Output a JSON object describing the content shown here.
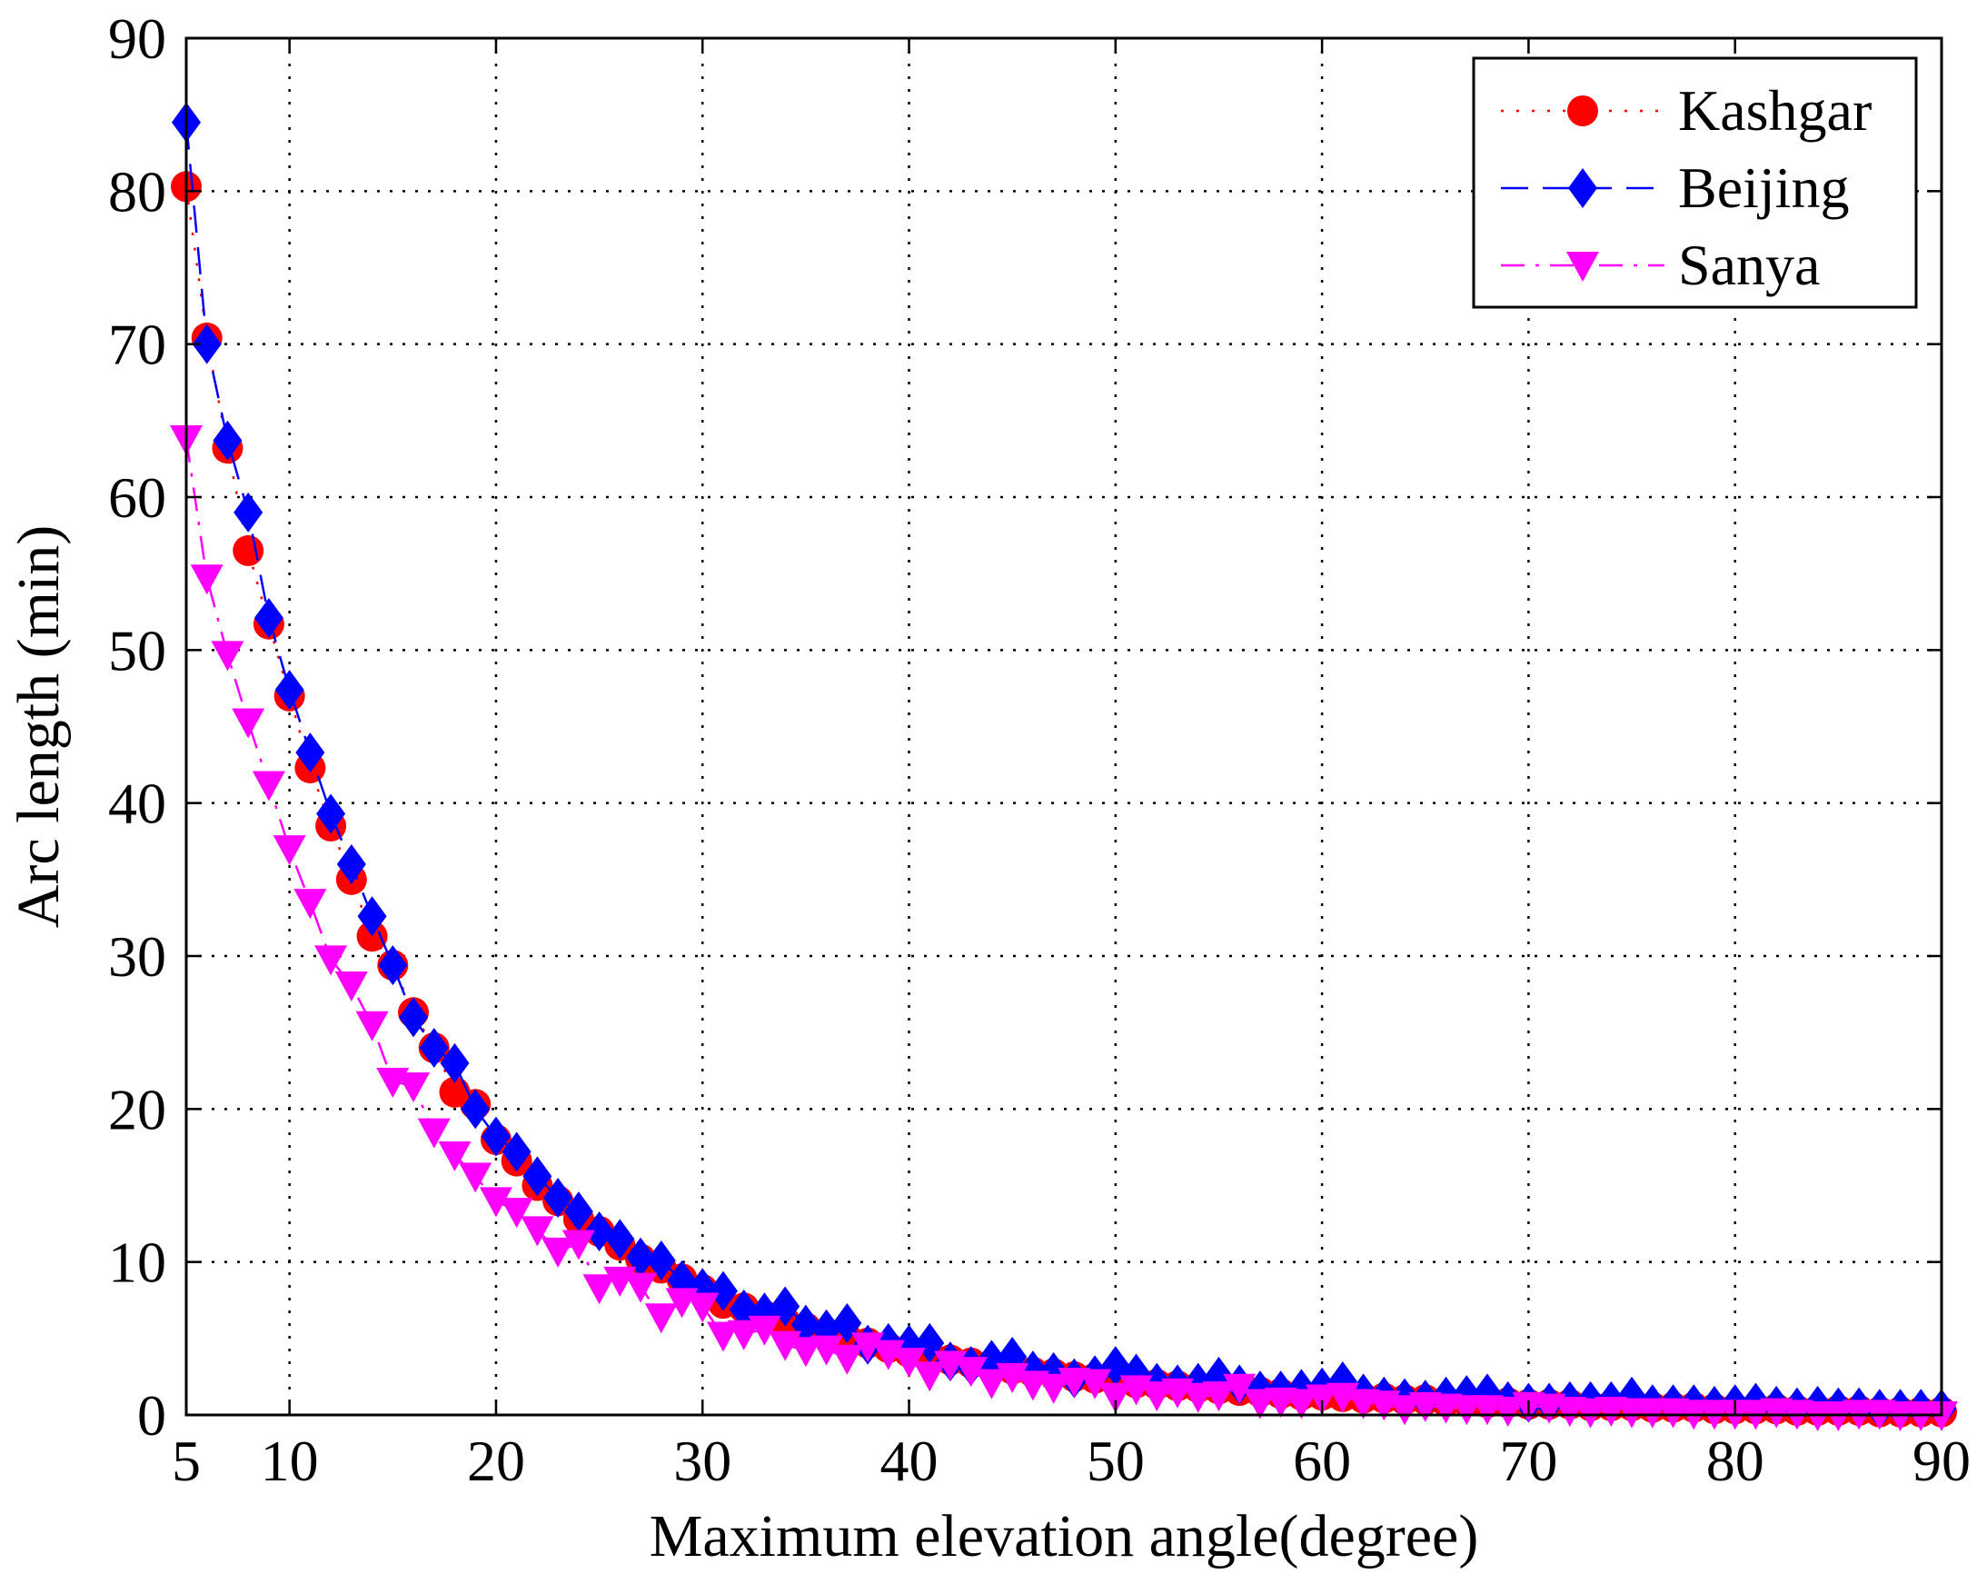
{
  "chart_data": {
    "type": "line",
    "xlabel": "Maximum elevation angle(degree)",
    "ylabel": "Arc length (min)",
    "xlim": [
      5,
      90
    ],
    "ylim": [
      0,
      90
    ],
    "x_ticks": [
      "5",
      "10",
      "20",
      "30",
      "40",
      "50",
      "60",
      "70",
      "80",
      "90"
    ],
    "x_tick_values": [
      5,
      10,
      20,
      30,
      40,
      50,
      60,
      70,
      80,
      90
    ],
    "y_ticks": [
      "0",
      "10",
      "20",
      "30",
      "40",
      "50",
      "60",
      "70",
      "80",
      "90"
    ],
    "y_tick_values": [
      0,
      10,
      20,
      30,
      40,
      50,
      60,
      70,
      80,
      90
    ],
    "grid": true,
    "legend_position": "top-right",
    "series": [
      {
        "name": "Kashgar",
        "color": "#ff0000",
        "marker": "circle",
        "line_style": "dotted",
        "x": [
          5,
          6,
          7,
          8,
          9,
          10,
          11,
          12,
          13,
          14,
          15,
          16,
          17,
          18,
          19,
          20,
          21,
          22,
          23,
          24,
          25,
          26,
          27,
          28,
          29,
          30,
          31,
          32,
          33,
          34,
          35,
          36,
          37,
          38,
          39,
          40,
          41,
          42,
          43,
          44,
          45,
          46,
          47,
          48,
          49,
          50,
          51,
          52,
          53,
          54,
          55,
          56,
          57,
          58,
          59,
          60,
          61,
          62,
          63,
          64,
          65,
          66,
          67,
          68,
          69,
          70,
          71,
          72,
          73,
          74,
          75,
          76,
          77,
          78,
          79,
          80,
          81,
          82,
          83,
          84,
          85,
          86,
          87,
          88,
          89,
          90
        ],
        "values": [
          80.3,
          70.4,
          63.2,
          56.5,
          51.7,
          47.0,
          42.3,
          38.5,
          35.0,
          31.3,
          29.4,
          26.3,
          24.0,
          21.1,
          20.3,
          18.0,
          16.6,
          15.0,
          14.0,
          12.8,
          12.0,
          11.1,
          10.2,
          9.6,
          8.9,
          8.2,
          7.3,
          7.0,
          6.5,
          6.1,
          5.7,
          5.3,
          5.0,
          4.7,
          4.4,
          4.1,
          3.8,
          3.6,
          3.4,
          3.2,
          3.0,
          2.8,
          2.7,
          2.5,
          2.4,
          2.2,
          2.1,
          2.0,
          1.9,
          1.8,
          1.7,
          1.6,
          1.5,
          1.4,
          1.3,
          1.3,
          1.2,
          1.1,
          1.1,
          1.0,
          1.0,
          0.9,
          0.9,
          0.8,
          0.8,
          0.7,
          0.7,
          0.7,
          0.6,
          0.6,
          0.6,
          0.5,
          0.5,
          0.5,
          0.4,
          0.4,
          0.4,
          0.4,
          0.3,
          0.3,
          0.3,
          0.3,
          0.2,
          0.2,
          0.2,
          0.2
        ]
      },
      {
        "name": "Beijing",
        "color": "#0000ff",
        "marker": "diamond",
        "line_style": "dashed",
        "x": [
          5,
          6,
          7,
          8,
          9,
          10,
          11,
          12,
          13,
          14,
          15,
          16,
          17,
          18,
          19,
          20,
          21,
          22,
          23,
          24,
          25,
          26,
          27,
          28,
          29,
          30,
          31,
          32,
          33,
          34,
          35,
          36,
          37,
          38,
          39,
          40,
          41,
          42,
          43,
          44,
          45,
          46,
          47,
          48,
          49,
          50,
          51,
          52,
          53,
          54,
          55,
          56,
          57,
          58,
          59,
          60,
          61,
          62,
          63,
          64,
          65,
          66,
          67,
          68,
          69,
          70,
          71,
          72,
          73,
          74,
          75,
          76,
          77,
          78,
          79,
          80,
          81,
          82,
          83,
          84,
          85,
          86,
          87,
          88,
          89,
          90
        ],
        "values": [
          84.5,
          70.0,
          63.7,
          59.0,
          52.1,
          47.4,
          43.3,
          39.3,
          36.0,
          32.6,
          29.4,
          26.0,
          24.0,
          23.0,
          20.0,
          18.2,
          17.2,
          15.6,
          14.2,
          13.3,
          12.0,
          11.5,
          10.3,
          10.1,
          8.8,
          8.3,
          8.1,
          6.9,
          6.7,
          7.1,
          5.9,
          5.6,
          6.0,
          4.6,
          4.7,
          4.6,
          4.7,
          3.5,
          3.2,
          3.6,
          3.8,
          2.9,
          2.8,
          2.4,
          2.6,
          3.2,
          2.7,
          2.1,
          2.0,
          2.1,
          2.5,
          2.0,
          1.6,
          1.6,
          1.7,
          1.8,
          2.2,
          1.4,
          1.2,
          1.1,
          1.0,
          1.2,
          1.3,
          1.4,
          0.9,
          0.8,
          0.8,
          0.9,
          0.9,
          0.9,
          1.2,
          0.7,
          0.7,
          0.7,
          0.6,
          0.7,
          0.8,
          0.6,
          0.5,
          0.6,
          0.5,
          0.5,
          0.4,
          0.4,
          0.4,
          0.4
        ]
      },
      {
        "name": "Sanya",
        "color": "#ff00ff",
        "marker": "triangle-down",
        "line_style": "dashdot",
        "x": [
          5,
          6,
          7,
          8,
          9,
          10,
          11,
          12,
          13,
          14,
          15,
          16,
          17,
          18,
          19,
          20,
          21,
          22,
          23,
          24,
          25,
          26,
          27,
          28,
          29,
          30,
          31,
          32,
          33,
          34,
          35,
          36,
          37,
          38,
          39,
          40,
          41,
          42,
          43,
          44,
          45,
          46,
          47,
          48,
          49,
          50,
          51,
          52,
          53,
          54,
          55,
          56,
          57,
          58,
          59,
          60,
          61,
          62,
          63,
          64,
          65,
          66,
          67,
          68,
          69,
          70,
          71,
          72,
          73,
          74,
          75,
          76,
          77,
          78,
          79,
          80,
          81,
          82,
          83,
          84,
          85,
          86,
          87,
          88,
          89,
          90
        ],
        "values": [
          63.8,
          54.7,
          49.7,
          45.3,
          41.2,
          37.0,
          33.5,
          29.8,
          28.1,
          25.5,
          21.8,
          21.5,
          18.5,
          17.0,
          15.6,
          14.0,
          13.3,
          12.1,
          10.7,
          11.2,
          8.3,
          8.8,
          8.4,
          6.4,
          7.4,
          7.1,
          5.2,
          5.3,
          5.6,
          4.6,
          4.2,
          4.3,
          3.7,
          4.5,
          4.0,
          3.5,
          2.6,
          3.3,
          2.9,
          2.1,
          2.5,
          2.0,
          1.8,
          2.2,
          2.1,
          1.2,
          1.7,
          1.3,
          1.5,
          1.2,
          1.3,
          1.8,
          0.8,
          0.9,
          0.8,
          1.1,
          1.2,
          0.8,
          0.7,
          0.4,
          0.6,
          0.5,
          0.4,
          0.4,
          0.3,
          0.6,
          0.5,
          0.3,
          0.2,
          0.3,
          0.2,
          0.2,
          0.2,
          0.1,
          0.1,
          0.1,
          0.1,
          0.2,
          0.1,
          0.0,
          0.0,
          0.1,
          0.1,
          0.0,
          0.0,
          0.0
        ]
      }
    ]
  }
}
